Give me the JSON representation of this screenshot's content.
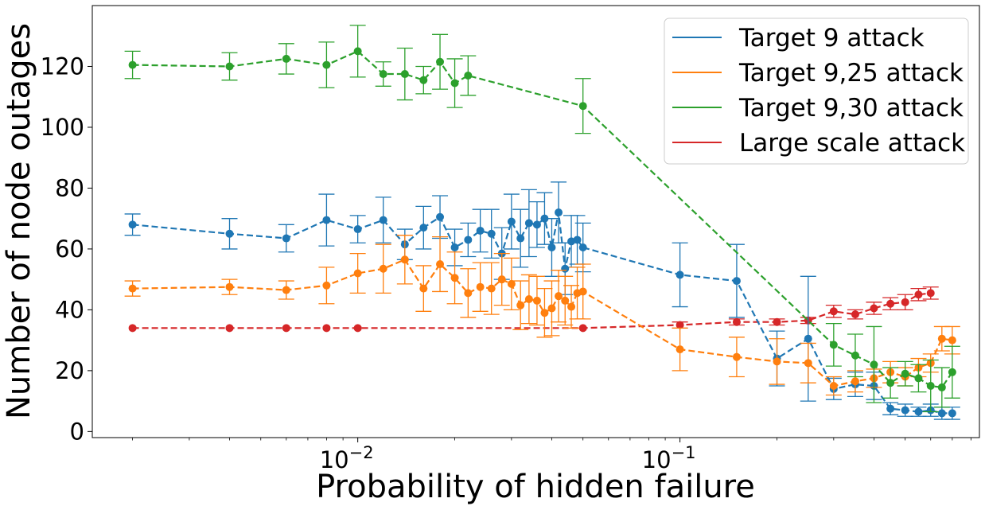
{
  "chart_data": {
    "type": "line",
    "xscale": "log",
    "xlabel": "Probability of hidden failure",
    "ylabel": "Number of node outages",
    "xlim": [
      0.0015,
      0.85
    ],
    "ylim": [
      -2,
      140
    ],
    "yticks": [
      0,
      20,
      40,
      60,
      80,
      100,
      120
    ],
    "xticks": [
      {
        "value": 0.01,
        "base": "10",
        "exp": "−2"
      },
      {
        "value": 0.1,
        "base": "10",
        "exp": "−1"
      }
    ],
    "legend_position": "upper right",
    "series": [
      {
        "name": "Target 9 attack",
        "color": "#1f77b4",
        "x": [
          0.002,
          0.004,
          0.006,
          0.008,
          0.01,
          0.012,
          0.014,
          0.016,
          0.018,
          0.02,
          0.022,
          0.024,
          0.026,
          0.028,
          0.03,
          0.032,
          0.034,
          0.036,
          0.038,
          0.04,
          0.042,
          0.044,
          0.046,
          0.048,
          0.05,
          0.1,
          0.15,
          0.2,
          0.25,
          0.3,
          0.35,
          0.4,
          0.45,
          0.5,
          0.55,
          0.6,
          0.65,
          0.7
        ],
        "y": [
          68,
          65,
          63.5,
          69.5,
          66.5,
          69.5,
          61.5,
          67,
          70.5,
          60.5,
          63,
          66,
          65,
          58.5,
          69,
          63.5,
          68.5,
          68,
          70,
          60.5,
          72,
          53.5,
          62.5,
          63,
          60.5,
          51.5,
          49.5,
          24,
          30.5,
          14,
          15.5,
          15,
          7.5,
          7,
          6.5,
          7,
          6,
          6
        ],
        "err": [
          3.5,
          5,
          4.5,
          8.5,
          4.5,
          7.5,
          5,
          7,
          7,
          6,
          5.5,
          7,
          8,
          8.5,
          9,
          9.5,
          11,
          7.5,
          8.5,
          9.5,
          10,
          8.5,
          8.5,
          8,
          8,
          10.5,
          12,
          9,
          20.5,
          3.5,
          4,
          4.5,
          2,
          2,
          1.5,
          2,
          2,
          2
        ]
      },
      {
        "name": "Target 9,25 attack",
        "color": "#ff7f0e",
        "x": [
          0.002,
          0.004,
          0.006,
          0.008,
          0.01,
          0.012,
          0.014,
          0.016,
          0.018,
          0.02,
          0.022,
          0.024,
          0.026,
          0.028,
          0.03,
          0.032,
          0.034,
          0.036,
          0.038,
          0.04,
          0.042,
          0.044,
          0.046,
          0.048,
          0.05,
          0.1,
          0.15,
          0.2,
          0.25,
          0.3,
          0.35,
          0.4,
          0.45,
          0.5,
          0.55,
          0.6,
          0.65,
          0.7
        ],
        "y": [
          47,
          47.5,
          46.5,
          48,
          52,
          53.5,
          56.5,
          47,
          55,
          50.5,
          45.5,
          47.5,
          47,
          50,
          48.5,
          41.5,
          43.5,
          43,
          39,
          40.5,
          44.5,
          43,
          41,
          45.5,
          46,
          27,
          24.5,
          23,
          22.5,
          15,
          16.5,
          17.5,
          19.5,
          18,
          21,
          22.5,
          30.5,
          30
        ],
        "err": [
          2.5,
          2.5,
          3,
          6,
          6.5,
          8,
          8,
          7.5,
          9,
          8.5,
          8,
          8,
          8.5,
          8.5,
          8.5,
          8,
          8,
          8,
          8,
          9,
          8.5,
          8,
          7,
          8.5,
          9,
          7,
          6.5,
          7.5,
          6.5,
          3,
          3.5,
          3,
          3.5,
          3,
          3,
          3,
          4,
          4.5
        ]
      },
      {
        "name": "Target 9,30 attack",
        "color": "#2ca02c",
        "x": [
          0.002,
          0.004,
          0.006,
          0.008,
          0.01,
          0.012,
          0.014,
          0.016,
          0.018,
          0.02,
          0.022,
          0.05,
          0.3,
          0.35,
          0.4,
          0.45,
          0.5,
          0.55,
          0.6,
          0.65,
          0.7
        ],
        "y": [
          120.5,
          120,
          122.5,
          120.5,
          125,
          117.5,
          117.5,
          115.5,
          121.5,
          114.5,
          117,
          107,
          28.5,
          25,
          22,
          16,
          19,
          17.5,
          15,
          14.5,
          19.5
        ],
        "err": [
          4.5,
          4.5,
          5,
          7.5,
          8.5,
          4,
          8.5,
          4.5,
          9,
          8,
          6.5,
          9,
          7,
          7,
          12.5,
          5,
          4,
          4.5,
          8.5,
          6.5,
          8.5
        ]
      },
      {
        "name": "Large scale attack",
        "color": "#d62728",
        "x": [
          0.002,
          0.004,
          0.006,
          0.008,
          0.01,
          0.05,
          0.1,
          0.15,
          0.2,
          0.25,
          0.3,
          0.35,
          0.4,
          0.45,
          0.5,
          0.55,
          0.6
        ],
        "y": [
          34,
          34,
          34,
          34,
          34,
          34,
          35,
          36,
          36,
          36.5,
          39.5,
          38.5,
          40.5,
          42,
          42.5,
          45,
          45.5
        ],
        "err": [
          0,
          0,
          0,
          0,
          0,
          0,
          1,
          1,
          1,
          1,
          2,
          1.5,
          2,
          2,
          2.5,
          2,
          2
        ]
      }
    ],
    "legend_order": [
      0,
      1,
      2,
      3
    ],
    "line_series": [
      3,
      0,
      1,
      2
    ]
  }
}
